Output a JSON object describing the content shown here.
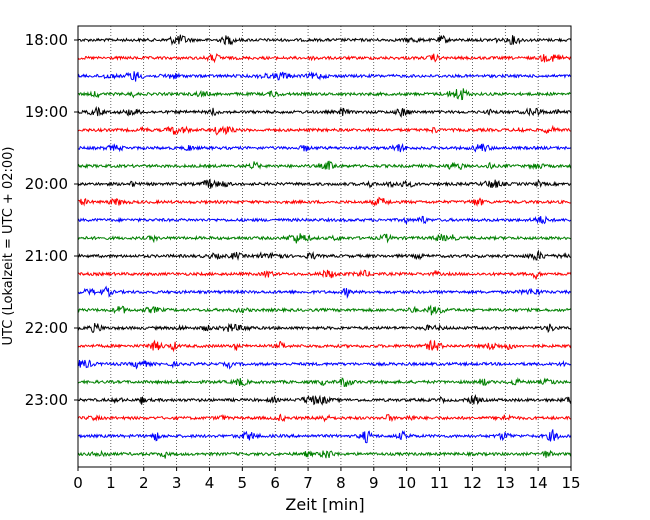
{
  "chart_data": {
    "type": "line",
    "title": "",
    "xlabel": "Zeit  [min]",
    "ylabel": "UTC (Lokalzeit = UTC + 02:00)",
    "xlim": [
      0,
      15
    ],
    "x_ticks": [
      "0",
      "1",
      "2",
      "3",
      "4",
      "5",
      "6",
      "7",
      "8",
      "9",
      "10",
      "11",
      "12",
      "13",
      "14",
      "15"
    ],
    "y_ticks": [
      "18:00",
      "19:00",
      "20:00",
      "21:00",
      "22:00",
      "23:00"
    ],
    "grid": "vertical dotted at each minute",
    "trace_interval_minutes": 15,
    "trace_start": "18:00",
    "trace_end": "23:45",
    "trace_colors": [
      "#000000",
      "#ff0000",
      "#0000ff",
      "#008000"
    ],
    "series": [
      {
        "start": "18:00",
        "color": "#000000"
      },
      {
        "start": "18:15",
        "color": "#ff0000"
      },
      {
        "start": "18:30",
        "color": "#0000ff"
      },
      {
        "start": "18:45",
        "color": "#008000"
      },
      {
        "start": "19:00",
        "color": "#000000"
      },
      {
        "start": "19:15",
        "color": "#ff0000"
      },
      {
        "start": "19:30",
        "color": "#0000ff"
      },
      {
        "start": "19:45",
        "color": "#008000"
      },
      {
        "start": "20:00",
        "color": "#000000"
      },
      {
        "start": "20:15",
        "color": "#ff0000"
      },
      {
        "start": "20:30",
        "color": "#0000ff"
      },
      {
        "start": "20:45",
        "color": "#008000"
      },
      {
        "start": "21:00",
        "color": "#000000"
      },
      {
        "start": "21:15",
        "color": "#ff0000"
      },
      {
        "start": "21:30",
        "color": "#0000ff"
      },
      {
        "start": "21:45",
        "color": "#008000"
      },
      {
        "start": "22:00",
        "color": "#000000"
      },
      {
        "start": "22:15",
        "color": "#ff0000"
      },
      {
        "start": "22:30",
        "color": "#0000ff"
      },
      {
        "start": "22:45",
        "color": "#008000"
      },
      {
        "start": "23:00",
        "color": "#000000"
      },
      {
        "start": "23:15",
        "color": "#ff0000"
      },
      {
        "start": "23:30",
        "color": "#0000ff"
      },
      {
        "start": "23:45",
        "color": "#008000"
      }
    ]
  }
}
